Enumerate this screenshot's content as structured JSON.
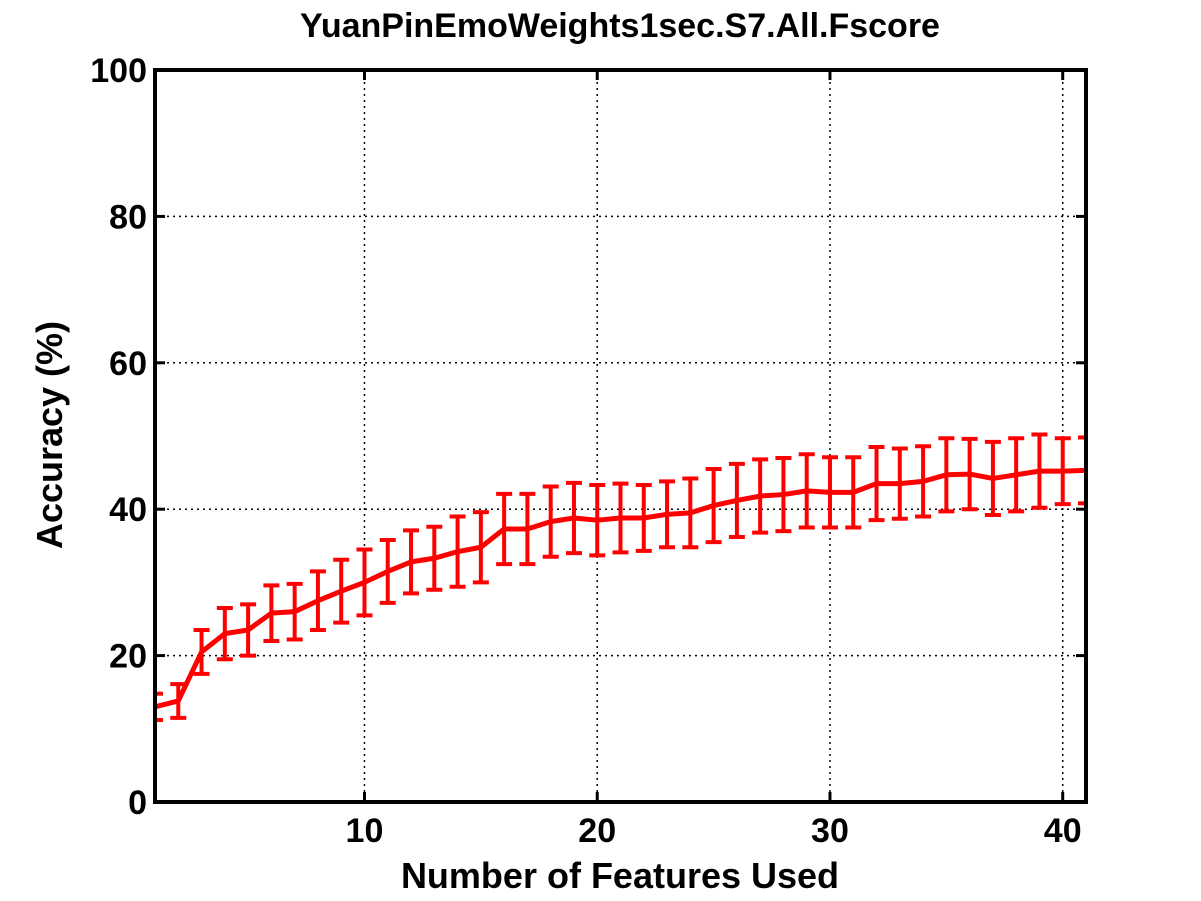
{
  "chart_data": {
    "type": "line",
    "title": "YuanPinEmoWeights1sec.S7.All.Fscore",
    "xlabel": "Number of Features Used",
    "ylabel": "Accuracy (%)",
    "xlim": [
      1,
      41
    ],
    "ylim": [
      0,
      100
    ],
    "xticks": [
      10,
      20,
      30,
      40
    ],
    "yticks": [
      0,
      20,
      40,
      60,
      80,
      100
    ],
    "grid": true,
    "line_color": "#ff0000",
    "series": [
      {
        "x": [
          1,
          2,
          3,
          4,
          5,
          6,
          7,
          8,
          9,
          10,
          11,
          12,
          13,
          14,
          15,
          16,
          17,
          18,
          19,
          20,
          21,
          22,
          23,
          24,
          25,
          26,
          27,
          28,
          29,
          30,
          31,
          32,
          33,
          34,
          35,
          36,
          37,
          38,
          39,
          40,
          41
        ],
        "y": [
          13,
          13.8,
          20.5,
          23,
          23.5,
          25.8,
          26,
          27.5,
          28.8,
          30,
          31.5,
          32.8,
          33.3,
          34.2,
          34.8,
          37.3,
          37.3,
          38.3,
          38.8,
          38.5,
          38.8,
          38.8,
          39.3,
          39.5,
          40.5,
          41.2,
          41.8,
          42,
          42.5,
          42.3,
          42.3,
          43.5,
          43.5,
          43.8,
          44.7,
          44.8,
          44.2,
          44.7,
          45.2,
          45.2,
          45.3
        ],
        "err": [
          1.8,
          2.3,
          3,
          3.5,
          3.5,
          3.8,
          3.8,
          4,
          4.3,
          4.5,
          4.3,
          4.3,
          4.3,
          4.8,
          4.8,
          4.8,
          4.8,
          4.8,
          4.8,
          4.8,
          4.7,
          4.5,
          4.5,
          4.7,
          5,
          5,
          5,
          5,
          5,
          4.8,
          4.8,
          5,
          4.8,
          4.8,
          5,
          4.8,
          5,
          5,
          5,
          4.5,
          4.5
        ]
      }
    ]
  }
}
